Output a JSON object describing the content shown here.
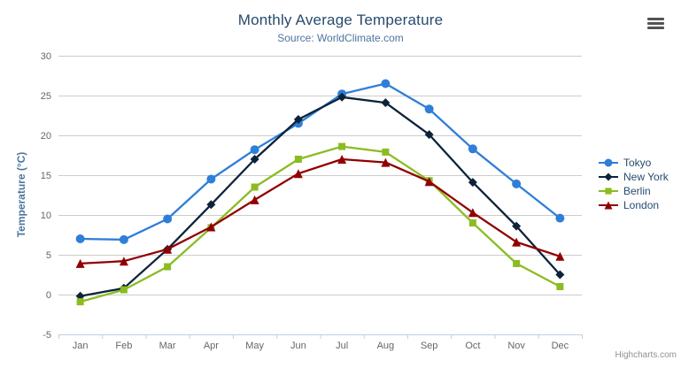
{
  "credits": {
    "label": "Highcharts.com"
  },
  "colors": {
    "title": "#274b6d",
    "subtitle": "#4d759e",
    "axis_title": "#4d759e",
    "axis_labels": "#666666",
    "grid": "#cccccc",
    "axis_line": "#c0d0e0",
    "legend_text": "#274b6d",
    "menu_icon": "#545454",
    "credits_text": "#909090"
  },
  "chart_data": {
    "type": "line",
    "title": "Monthly Average Temperature",
    "subtitle": "Source: WorldClimate.com",
    "xlabel": "",
    "ylabel": "Temperature (°C)",
    "categories": [
      "Jan",
      "Feb",
      "Mar",
      "Apr",
      "May",
      "Jun",
      "Jul",
      "Aug",
      "Sep",
      "Oct",
      "Nov",
      "Dec"
    ],
    "ylim": [
      -5,
      30
    ],
    "ytick_step": 5,
    "grid": true,
    "legend_position": "right",
    "series": [
      {
        "name": "Tokyo",
        "color": "#2f7ed8",
        "marker": "circle",
        "values": [
          7.0,
          6.9,
          9.5,
          14.5,
          18.2,
          21.5,
          25.2,
          26.5,
          23.3,
          18.3,
          13.9,
          9.6
        ]
      },
      {
        "name": "New York",
        "color": "#0d233a",
        "marker": "diamond",
        "values": [
          -0.2,
          0.8,
          5.7,
          11.3,
          17.0,
          22.0,
          24.8,
          24.1,
          20.1,
          14.1,
          8.6,
          2.5
        ]
      },
      {
        "name": "Berlin",
        "color": "#8bbc21",
        "marker": "square",
        "values": [
          -0.9,
          0.6,
          3.5,
          8.4,
          13.5,
          17.0,
          18.6,
          17.9,
          14.3,
          9.0,
          3.9,
          1.0
        ]
      },
      {
        "name": "London",
        "color": "#910000",
        "marker": "triangle",
        "values": [
          3.9,
          4.2,
          5.7,
          8.5,
          11.9,
          15.2,
          17.0,
          16.6,
          14.2,
          10.3,
          6.6,
          4.8
        ]
      }
    ]
  }
}
